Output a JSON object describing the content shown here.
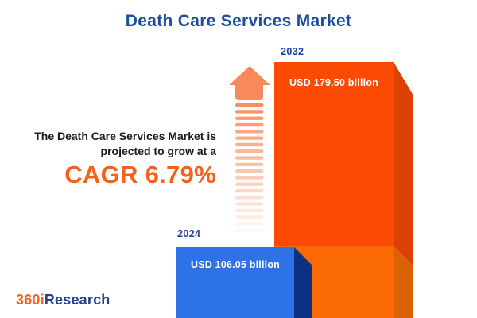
{
  "title": "Death Care Services Market",
  "intro": {
    "line1": "The Death Care Services Market is",
    "line2": "projected to grow at a",
    "cagr_label": "CAGR 6.79%"
  },
  "chart_data": {
    "type": "bar",
    "title": "Death Care Services Market",
    "unit": "USD billion",
    "categories": [
      "2024",
      "2032"
    ],
    "values": [
      106.05,
      179.5
    ],
    "value_labels": [
      "USD 106.05 billion",
      "USD 179.50 billion"
    ],
    "cagr_percent": 6.79,
    "axes": "none",
    "legend": "none",
    "style": "3d-infographic-bars"
  },
  "bars": {
    "b2024": {
      "year": "2024",
      "value_label": "USD 106.05 billion"
    },
    "b2032": {
      "year": "2032",
      "value_label": "USD 179.50 billion"
    }
  },
  "logo": {
    "prefix": "360i",
    "suffix": "Research"
  },
  "colors": {
    "title_blue": "#1C4DA1",
    "year_blue": "#1E3F97",
    "text_dark": "#1A1A1A",
    "cagr_orange": "#F5601A",
    "bar2024_front": "#2E72E7",
    "bar2024_side": "#0D3183",
    "bar2032_front_top": "#FB4A03",
    "bar2032_front_bottom": "#FB6A02",
    "bar2032_side_top": "#DC4106",
    "bar2032_side_bottom": "#DB6105",
    "arrow": "#F8895B",
    "logo_orange": "#F26322",
    "logo_blue": "#21408F"
  }
}
